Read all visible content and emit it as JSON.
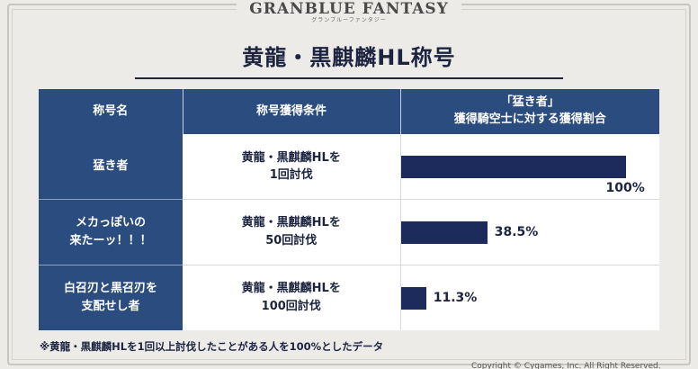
{
  "logo": {
    "main": "GRANBLUE FANTASY",
    "sub": "グランブルーファンタジー"
  },
  "title": "黄龍・黒麒麟HL称号",
  "table": {
    "headers": {
      "name": "称号名",
      "condition": "称号獲得条件",
      "ratio_line1": "「猛き者」",
      "ratio_line2": "獲得騎空士に対する獲得割合"
    },
    "rows": [
      {
        "name_line1": "猛き者",
        "name_line2": "",
        "cond_line1": "黄龍・黒麒麟HLを",
        "cond_line2": "1回討伐",
        "percent_label": "100%",
        "percent": 100
      },
      {
        "name_line1": "メカっぽいの",
        "name_line2": "来たーッ！！！",
        "cond_line1": "黄龍・黒麒麟HLを",
        "cond_line2": "50回討伐",
        "percent_label": "38.5%",
        "percent": 38.5
      },
      {
        "name_line1": "白召刃と黒召刃を",
        "name_line2": "支配せし者",
        "cond_line1": "黄龍・黒麒麟HLを",
        "cond_line2": "100回討伐",
        "percent_label": "11.3%",
        "percent": 11.3
      }
    ]
  },
  "footnote": "※黄龍・黒麒麟HLを1回以上討伐したことがある人を100%としたデータ",
  "copyright": "Copyright © Cygames, Inc. All Right Reserved.",
  "colors": {
    "header_bg": "#2a4c7e",
    "bar": "#1c2a5c",
    "title": "#1c2440"
  }
}
